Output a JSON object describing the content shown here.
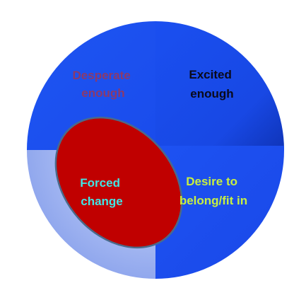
{
  "diagram": {
    "quadrants": [
      {
        "id": "top-left",
        "line1": "Desperate",
        "line2": "enough",
        "text_color": "#8b3a6b",
        "fill": "#1a4ff0"
      },
      {
        "id": "top-right",
        "line1": "Excited",
        "line2": "enough",
        "text_color": "#0a0a1a",
        "fill": "#1747e6"
      },
      {
        "id": "bottom-right",
        "line1": "Desire to",
        "line2": "belong/fit in",
        "text_color": "#c8f040",
        "fill": "#1a4ff0"
      },
      {
        "id": "bottom-left",
        "line1": "",
        "line2": "",
        "text_color": "#ffffff",
        "fill": "#8ea6ef"
      }
    ],
    "center": {
      "line1": "Forced",
      "line2": "change",
      "text_color": "#40e6e6",
      "fill": "#c00000",
      "stroke": "#4a6a8a"
    }
  }
}
